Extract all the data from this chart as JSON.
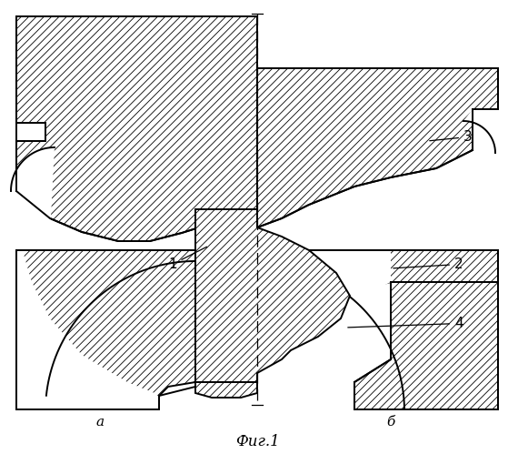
{
  "title": "Фиг.1",
  "label_a": "а",
  "label_b": "б",
  "hatch_pattern": "////",
  "line_color": "#000000",
  "bg_color": "#ffffff",
  "lw": 1.4,
  "fontsize_label": 11,
  "fontsize_title": 12
}
